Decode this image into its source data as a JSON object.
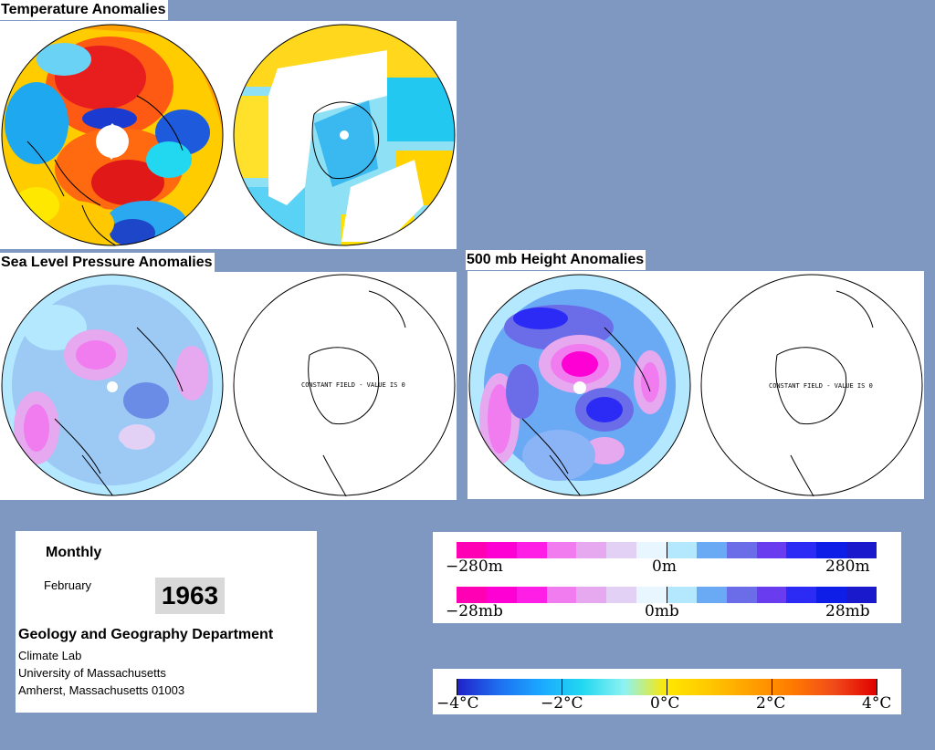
{
  "titles": {
    "temperature": "Temperature Anomalies",
    "slp": "Sea Level Pressure Anomalies",
    "height500": "500 mb Height Anomalies"
  },
  "map_labels": {
    "constant_field_slp": "CONSTANT FIELD - VALUE IS 0",
    "constant_field_500": "CONSTANT FIELD - VALUE IS 0"
  },
  "info": {
    "period": "Monthly",
    "month": "February",
    "year": "1963",
    "department": "Geology and Geography Department",
    "lab": "Climate Lab",
    "university": "University of Massachusetts",
    "address": "Amherst, Massachusetts 01003"
  },
  "height_scale": {
    "labels": [
      "−280m",
      "0m",
      "280m"
    ],
    "colors": [
      "#ff00b4",
      "#ff00d4",
      "#ff1ee6",
      "#f07cf0",
      "#e6a9f0",
      "#e2d0f5",
      "#e8f7ff",
      "#b4e8ff",
      "#6aaaf5",
      "#6b6ce8",
      "#6a3cf0",
      "#2b2bf5",
      "#0f1ee6",
      "#1a1acc"
    ]
  },
  "pressure_scale": {
    "labels": [
      "−28mb",
      "0mb",
      "28mb"
    ],
    "colors": [
      "#ff00b4",
      "#ff00d4",
      "#ff1ee6",
      "#f07cf0",
      "#e6a9f0",
      "#e2d0f5",
      "#e8f7ff",
      "#b4e8ff",
      "#6aaaf5",
      "#6b6ce8",
      "#6a3cf0",
      "#2b2bf5",
      "#0f1ee6",
      "#1a1acc"
    ]
  },
  "temperature_scale": {
    "labels": [
      "−4°C",
      "−2°C",
      "0°C",
      "2°C",
      "4°C"
    ],
    "gradient": [
      "#2020c8",
      "#1e6ef0",
      "#1aa8ff",
      "#22d8f0",
      "#8ef2f2",
      "#ffe800",
      "#ffc800",
      "#ffa000",
      "#ff7a00",
      "#f04a1a",
      "#e00000"
    ]
  }
}
